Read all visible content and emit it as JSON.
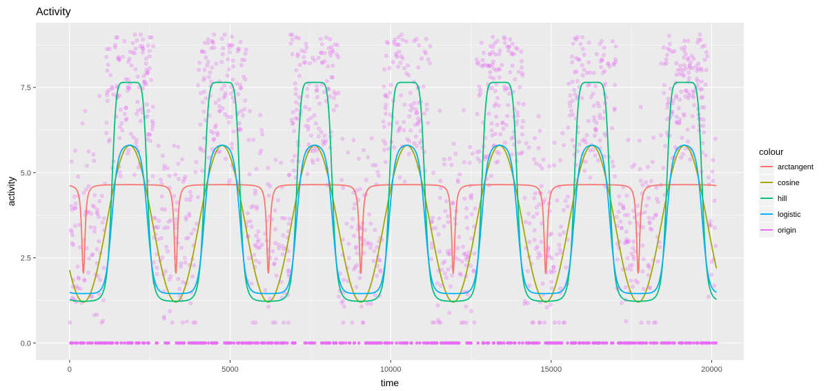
{
  "chart_data": {
    "type": "line",
    "title": "Activity",
    "xlabel": "time",
    "ylabel": "activity",
    "xlim": [
      -1050,
      21000
    ],
    "ylim": [
      -0.5,
      9.4
    ],
    "x_ticks": [
      0,
      5000,
      10000,
      15000,
      20000
    ],
    "x_tick_labels": [
      "0",
      "5000",
      "10000",
      "15000",
      "20000"
    ],
    "y_ticks": [
      0,
      2.5,
      5,
      7.5
    ],
    "y_tick_labels": [
      "0.0",
      "2.5",
      "5.0",
      "7.5"
    ],
    "grid": true,
    "legend": {
      "title": "colour",
      "placement": "right",
      "entries": [
        "arctangent",
        "cosine",
        "hill",
        "logistic",
        "origin"
      ]
    },
    "period": 2880,
    "x_range": [
      0,
      20150
    ],
    "series": [
      {
        "name": "arctangent",
        "color": "#F8766D",
        "kind": "line",
        "baseline": 4.65,
        "min": 2.05,
        "dip_phase": 430
      },
      {
        "name": "cosine",
        "color": "#A3A500",
        "kind": "line",
        "min": 1.2,
        "max": 5.8,
        "peak_phase": 1870
      },
      {
        "name": "hill",
        "color": "#00BF7D",
        "kind": "line",
        "min": 1.22,
        "max": 7.65,
        "plateau_center": 1870
      },
      {
        "name": "logistic",
        "color": "#00B0F6",
        "kind": "line",
        "min": 1.45,
        "max": 5.82,
        "plateau_center": 1870
      },
      {
        "name": "origin",
        "color": "#E76BF3",
        "kind": "scatter",
        "note_zero_values": true
      }
    ],
    "colors": {
      "panel": "#EBEBEB",
      "grid_major": "#FFFFFF",
      "origin": "#E76BF3"
    }
  }
}
